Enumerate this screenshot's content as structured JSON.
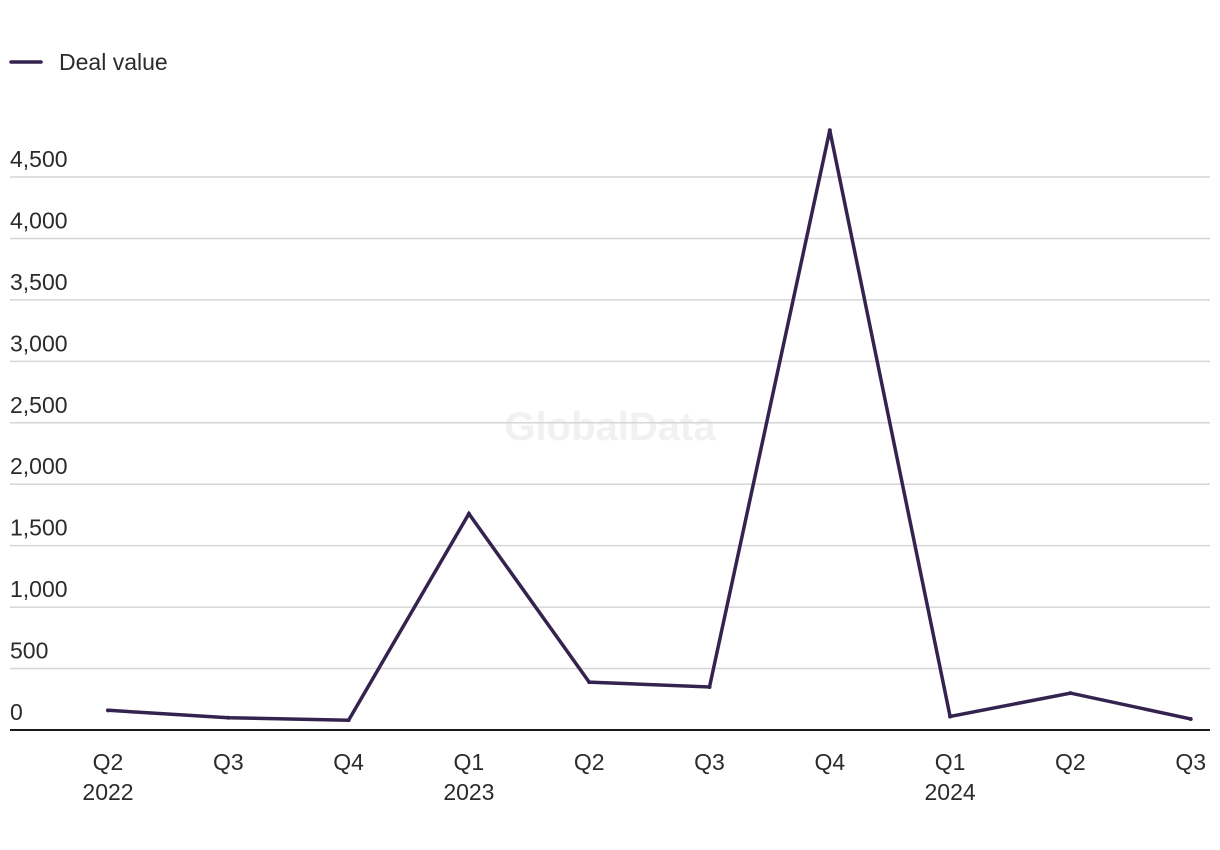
{
  "watermark": "GlobalData",
  "colors": {
    "line": "#35234f",
    "grid": "#d6d6d6",
    "axis": "#1a1a1a",
    "text": "#2b2b2b"
  },
  "chart_data": {
    "type": "line",
    "title": "",
    "xlabel": "",
    "ylabel": "",
    "legend": "top-left",
    "grid": true,
    "ylim": [
      0,
      4500
    ],
    "yticks": [
      0,
      500,
      1000,
      1500,
      2000,
      2500,
      3000,
      3500,
      4000,
      4500
    ],
    "ytick_labels": [
      "0",
      "500",
      "1,000",
      "1,500",
      "2,000",
      "2,500",
      "3,000",
      "3,500",
      "4,000",
      "4,500"
    ],
    "categories": [
      [
        "Q2",
        "2022"
      ],
      [
        "Q3"
      ],
      [
        "Q4"
      ],
      [
        "Q1",
        "2023"
      ],
      [
        "Q2"
      ],
      [
        "Q3"
      ],
      [
        "Q4"
      ],
      [
        "Q1",
        "2024"
      ],
      [
        "Q2"
      ],
      [
        "Q3"
      ]
    ],
    "series": [
      {
        "name": "Deal value",
        "values": [
          160,
          100,
          80,
          1760,
          390,
          350,
          4880,
          110,
          300,
          90
        ]
      }
    ]
  }
}
